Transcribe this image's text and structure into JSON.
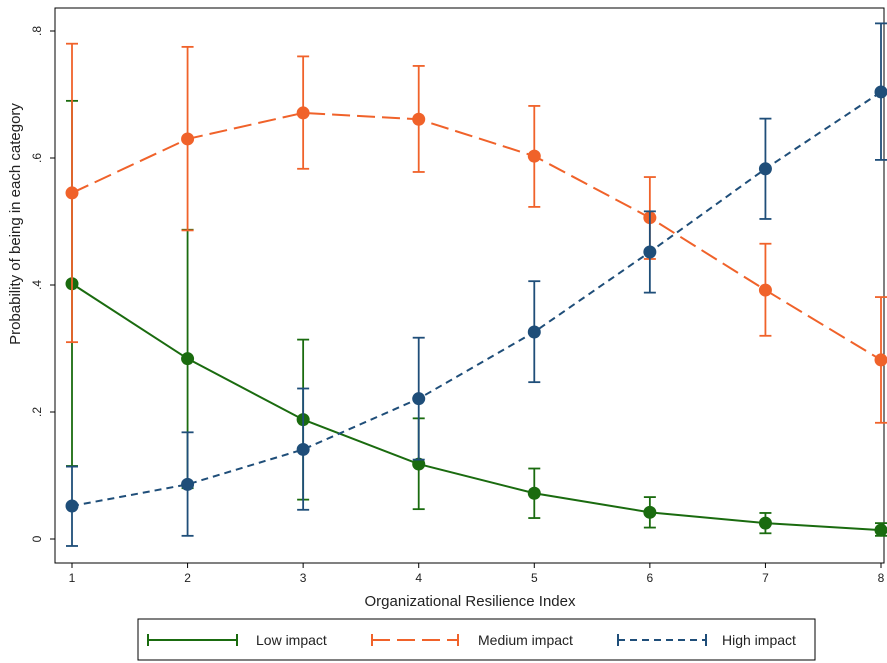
{
  "chart_data": {
    "type": "line",
    "xlabel": "Organizational Resilience Index",
    "ylabel": "Probability of being in each category",
    "x": [
      1,
      2,
      3,
      4,
      5,
      6,
      7,
      8
    ],
    "xlim": [
      1,
      8
    ],
    "ylim": [
      0,
      0.8
    ],
    "x_tick_labels": [
      "1",
      "2",
      "3",
      "4",
      "5",
      "6",
      "7",
      "8"
    ],
    "y_ticks": [
      0,
      0.2,
      0.4,
      0.6,
      0.8
    ],
    "y_tick_labels": [
      "0",
      ".2",
      ".4",
      ".6",
      ".8"
    ],
    "grid": false,
    "legend_position": "bottom",
    "series": [
      {
        "name": "Low impact",
        "color": "#1a6b0f",
        "dash": "solid",
        "values": [
          0.402,
          0.284,
          0.188,
          0.118,
          0.072,
          0.042,
          0.025,
          0.014
        ],
        "lower": [
          0.115,
          0.08,
          0.062,
          0.047,
          0.033,
          0.018,
          0.009,
          0.005
        ],
        "upper": [
          0.69,
          0.487,
          0.314,
          0.19,
          0.111,
          0.066,
          0.041,
          0.025
        ]
      },
      {
        "name": "Medium impact",
        "color": "#f0622a",
        "dash": "longdash",
        "values": [
          0.545,
          0.63,
          0.671,
          0.661,
          0.603,
          0.506,
          0.392,
          0.282
        ],
        "lower": [
          0.31,
          0.486,
          0.583,
          0.578,
          0.523,
          0.441,
          0.32,
          0.183
        ],
        "upper": [
          0.78,
          0.775,
          0.76,
          0.745,
          0.682,
          0.57,
          0.465,
          0.381
        ]
      },
      {
        "name": "High impact",
        "color": "#1f4e79",
        "dash": "dash",
        "values": [
          0.052,
          0.086,
          0.141,
          0.221,
          0.326,
          0.452,
          0.583,
          0.704
        ],
        "lower": [
          -0.011,
          0.005,
          0.046,
          0.125,
          0.247,
          0.388,
          0.504,
          0.597
        ],
        "upper": [
          0.114,
          0.168,
          0.237,
          0.317,
          0.406,
          0.516,
          0.662,
          0.812
        ]
      }
    ]
  }
}
